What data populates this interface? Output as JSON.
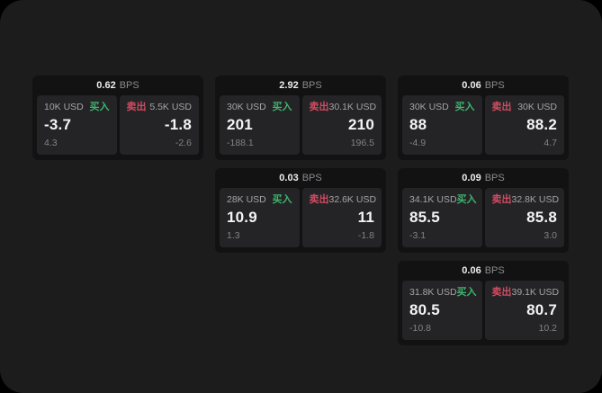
{
  "labels": {
    "buy": "买入",
    "sell": "卖出",
    "bps_unit": "BPS"
  },
  "colors": {
    "outer_bg": "#000000",
    "surface_bg": "#1c1c1d",
    "card_bg": "#121213",
    "panel_bg": "#242427",
    "buy_green": "#3fb46c",
    "sell_red": "#d14b60",
    "value_white": "#f4f4f5",
    "muted_gray": "#828285"
  },
  "cards": [
    {
      "bps": "0.62",
      "buy": {
        "size": "10K USD",
        "value": "-3.7",
        "sub": "4.3"
      },
      "sell": {
        "size": "5.5K USD",
        "value": "-1.8",
        "sub": "-2.6"
      }
    },
    {
      "bps": "2.92",
      "buy": {
        "size": "30K USD",
        "value": "201",
        "sub": "-188.1"
      },
      "sell": {
        "size": "30.1K USD",
        "value": "210",
        "sub": "196.5"
      }
    },
    {
      "bps": "0.06",
      "buy": {
        "size": "30K USD",
        "value": "88",
        "sub": "-4.9"
      },
      "sell": {
        "size": "30K USD",
        "value": "88.2",
        "sub": "4.7"
      }
    },
    {
      "bps": "0.03",
      "buy": {
        "size": "28K USD",
        "value": "10.9",
        "sub": "1.3"
      },
      "sell": {
        "size": "32.6K USD",
        "value": "11",
        "sub": "-1.8"
      }
    },
    {
      "bps": "0.09",
      "buy": {
        "size": "34.1K USD",
        "value": "85.5",
        "sub": "-3.1"
      },
      "sell": {
        "size": "32.8K USD",
        "value": "85.8",
        "sub": "3.0"
      }
    },
    {
      "bps": "0.06",
      "buy": {
        "size": "31.8K USD",
        "value": "80.5",
        "sub": "-10.8"
      },
      "sell": {
        "size": "39.1K USD",
        "value": "80.7",
        "sub": "10.2"
      }
    }
  ]
}
